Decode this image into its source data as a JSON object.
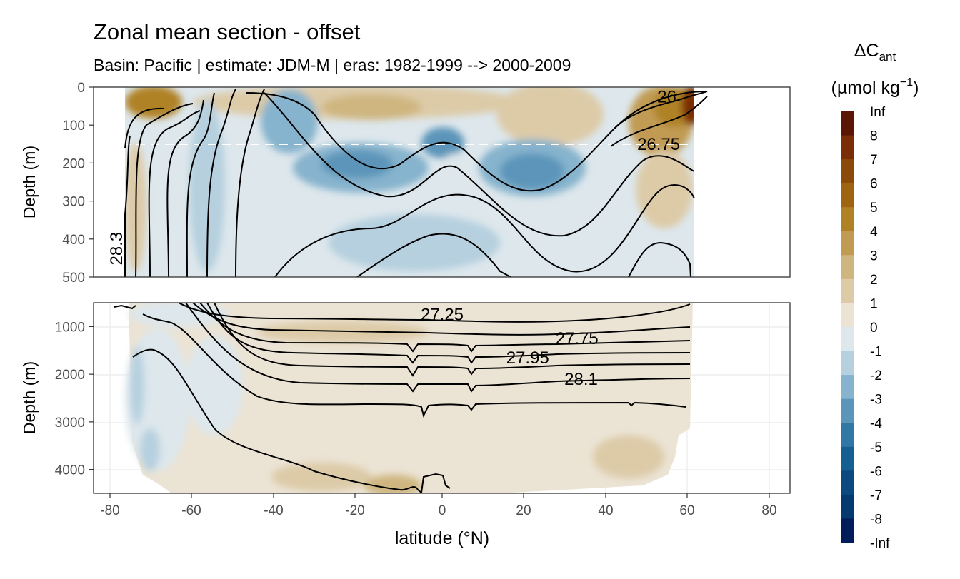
{
  "title": "Zonal mean section - offset",
  "subtitle": "Basin: Pacific | estimate: JDM-M | eras: 1982-1999 --> 2000-2009",
  "chart_data": {
    "type": "heatmap",
    "variable": "ΔC_ant",
    "xlabel": "latitude (°N)",
    "ylabel": "Depth (m)",
    "x_ticks": [
      -80,
      -60,
      -40,
      -20,
      0,
      20,
      40,
      60,
      80
    ],
    "xlim": [
      -85,
      85
    ],
    "panels": [
      {
        "name": "upper",
        "ylim": [
          0,
          500
        ],
        "y_ticks": [
          0,
          100,
          200,
          300,
          400,
          500
        ]
      },
      {
        "name": "lower",
        "ylim": [
          500,
          4500
        ],
        "y_ticks": [
          1000,
          2000,
          3000,
          4000
        ]
      }
    ],
    "colorbar": {
      "title_main": "ΔC",
      "title_sub": "ant",
      "unit_main": "(µmol kg",
      "unit_sup": "−1",
      "unit_close": ")",
      "labels": [
        "Inf",
        "8",
        "7",
        "6",
        "5",
        "4",
        "3",
        "2",
        "1",
        "0",
        "-1",
        "-2",
        "-3",
        "-4",
        "-5",
        "-6",
        "-7",
        "-8",
        "-Inf"
      ],
      "colors": [
        "#5a1505",
        "#7a2d06",
        "#8c4a08",
        "#9e640f",
        "#b08226",
        "#c19b52",
        "#cfb680",
        "#ddcba8",
        "#ebe3d4",
        "#dde7ec",
        "#b6d0df",
        "#86b3cd",
        "#5b95b9",
        "#3178a5",
        "#155f93",
        "#0a4a80",
        "#053a6e",
        "#021c5a"
      ]
    },
    "isopycnal_labels": [
      {
        "text": "26",
        "lat": 55,
        "depth": 25
      },
      {
        "text": "26.75",
        "lat": 53,
        "depth": 150
      },
      {
        "text": "28.3",
        "lat": -77,
        "depth": 410
      },
      {
        "text": "27.25",
        "lat": 0,
        "depth": 750
      },
      {
        "text": "27.75",
        "lat": 33,
        "depth": 1250
      },
      {
        "text": "27.95",
        "lat": 21,
        "depth": 1650
      },
      {
        "text": "28.1",
        "lat": 34,
        "depth": 2100
      }
    ],
    "reference_depth": 150
  }
}
